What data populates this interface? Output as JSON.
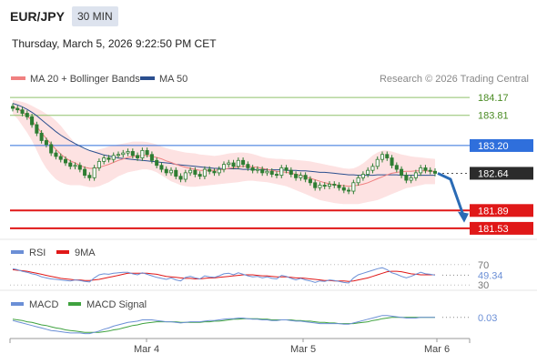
{
  "header": {
    "symbol": "EUR/JPY",
    "interval": "30 MIN",
    "datetime": "Thursday, March 5, 2026 9:22:50 PM CET"
  },
  "legend": {
    "ma20_bb": "MA 20 + Bollinger Bands",
    "ma50": "MA 50",
    "credit": "Research © 2026 Trading Central"
  },
  "colors": {
    "ma20": "#f08080",
    "ma50": "#2b4f8f",
    "band_fill": "#fde2e2",
    "resistance_green": "#8fc16b",
    "resistance_text": "#4a8b23",
    "pivot_blue": "#2f6fdc",
    "support_red": "#e01818",
    "arrow": "#2a6bb5",
    "candle": "#2e7d32",
    "rsi": "#6b8fd6",
    "rsi_ma": "#e01818",
    "macd": "#6b8fd6",
    "macd_signal": "#3fa23f"
  },
  "chart_data": [
    {
      "type": "candlestick",
      "ylim": [
        181.4,
        184.3
      ],
      "x_ticks": [
        "Mar 4",
        "Mar 5",
        "Mar 6"
      ],
      "levels": [
        {
          "value": 184.17,
          "label": "184.17",
          "kind": "resistance"
        },
        {
          "value": 183.81,
          "label": "183.81",
          "kind": "resistance"
        },
        {
          "value": 183.2,
          "label": "183.20",
          "kind": "pivot"
        },
        {
          "value": 182.64,
          "label": "182.64",
          "kind": "last"
        },
        {
          "value": 181.89,
          "label": "181.89",
          "kind": "support"
        },
        {
          "value": 181.53,
          "label": "181.53",
          "kind": "support"
        }
      ],
      "close": [
        183.95,
        183.92,
        183.85,
        183.78,
        183.62,
        183.45,
        183.3,
        183.22,
        183.05,
        182.98,
        182.92,
        182.85,
        182.78,
        182.8,
        182.72,
        182.6,
        182.55,
        182.75,
        182.88,
        182.95,
        182.92,
        183.0,
        183.02,
        183.05,
        183.08,
        183.0,
        182.95,
        183.1,
        183.02,
        182.9,
        182.8,
        182.72,
        182.65,
        182.7,
        182.58,
        182.52,
        182.65,
        182.7,
        182.62,
        182.58,
        182.72,
        182.68,
        182.65,
        182.72,
        182.82,
        182.85,
        182.78,
        182.9,
        182.82,
        182.75,
        182.7,
        182.72,
        182.65,
        182.68,
        182.62,
        182.6,
        182.75,
        182.7,
        182.62,
        182.55,
        182.6,
        182.52,
        182.45,
        182.35,
        182.4,
        182.38,
        182.42,
        182.4,
        182.35,
        182.3,
        182.28,
        182.45,
        182.55,
        182.62,
        182.7,
        182.78,
        182.92,
        183.02,
        182.95,
        182.8,
        182.72,
        182.6,
        182.5,
        182.55,
        182.65,
        182.75,
        182.7,
        182.68,
        182.64
      ],
      "ma50": [
        184.05,
        184.02,
        183.98,
        183.93,
        183.87,
        183.8,
        183.72,
        183.64,
        183.56,
        183.48,
        183.41,
        183.35,
        183.29,
        183.24,
        183.19,
        183.14,
        183.1,
        183.07,
        183.04,
        183.01,
        182.99,
        182.97,
        182.95,
        182.94,
        182.93,
        182.92,
        182.91,
        182.9,
        182.89,
        182.88,
        182.87,
        182.86,
        182.85,
        182.84,
        182.82,
        182.81,
        182.8,
        182.79,
        182.78,
        182.77,
        182.76,
        182.75,
        182.74,
        182.74,
        182.73,
        182.73,
        182.73,
        182.73,
        182.72,
        182.72,
        182.72,
        182.71,
        182.71,
        182.71,
        182.71,
        182.71,
        182.71,
        182.7,
        182.7,
        182.7,
        182.69,
        182.69,
        182.68,
        182.67,
        182.66,
        182.66,
        182.65,
        182.64,
        182.63,
        182.62,
        182.61,
        182.61,
        182.6,
        182.6,
        182.6,
        182.6,
        182.61,
        182.61,
        182.61,
        182.61,
        182.61,
        182.6,
        182.6,
        182.6,
        182.6,
        182.6,
        182.6,
        182.6,
        182.6
      ],
      "ma20": [
        183.98,
        183.94,
        183.88,
        183.8,
        183.7,
        183.58,
        183.46,
        183.34,
        183.23,
        183.12,
        183.03,
        182.95,
        182.89,
        182.85,
        182.8,
        182.76,
        182.74,
        182.74,
        182.76,
        182.79,
        182.82,
        182.86,
        182.9,
        182.93,
        182.96,
        182.98,
        182.99,
        183.0,
        183.0,
        182.98,
        182.96,
        182.93,
        182.89,
        182.86,
        182.82,
        182.79,
        182.76,
        182.74,
        182.72,
        182.7,
        182.7,
        182.7,
        182.7,
        182.71,
        182.72,
        182.74,
        182.75,
        182.77,
        182.78,
        182.78,
        182.77,
        182.76,
        182.74,
        182.72,
        182.7,
        182.68,
        182.67,
        182.66,
        182.64,
        182.62,
        182.6,
        182.57,
        182.54,
        182.51,
        182.48,
        182.45,
        182.43,
        182.41,
        182.4,
        182.39,
        182.38,
        182.39,
        182.4,
        182.42,
        182.45,
        182.49,
        182.53,
        182.57,
        182.61,
        182.64,
        182.66,
        182.67,
        182.68,
        182.68,
        182.69,
        182.69,
        182.69,
        182.68,
        182.68
      ],
      "bb_upper": [
        184.12,
        184.1,
        184.08,
        184.05,
        184.0,
        183.95,
        183.9,
        183.84,
        183.78,
        183.7,
        183.6,
        183.48,
        183.36,
        183.25,
        183.17,
        183.12,
        183.1,
        183.1,
        183.12,
        183.15,
        183.18,
        183.2,
        183.22,
        183.24,
        183.26,
        183.28,
        183.28,
        183.28,
        183.27,
        183.25,
        183.22,
        183.18,
        183.15,
        183.12,
        183.1,
        183.08,
        183.06,
        183.05,
        183.04,
        183.02,
        183.01,
        183.0,
        182.99,
        183.0,
        183.02,
        183.04,
        183.05,
        183.06,
        183.06,
        183.05,
        183.03,
        183.0,
        182.97,
        182.95,
        182.94,
        182.93,
        182.93,
        182.92,
        182.92,
        182.91,
        182.9,
        182.89,
        182.88,
        182.86,
        182.84,
        182.82,
        182.8,
        182.78,
        182.76,
        182.74,
        182.73,
        182.74,
        182.78,
        182.84,
        182.92,
        183.0,
        183.06,
        183.1,
        183.1,
        183.08,
        183.05,
        183.02,
        183.0,
        182.98,
        182.97,
        182.96,
        182.95,
        182.94,
        182.93
      ],
      "bb_lower": [
        183.84,
        183.74,
        183.6,
        183.46,
        183.3,
        183.1,
        182.9,
        182.74,
        182.62,
        182.52,
        182.46,
        182.42,
        182.4,
        182.4,
        182.4,
        182.38,
        182.36,
        182.36,
        182.38,
        182.42,
        182.46,
        182.52,
        182.58,
        182.62,
        182.66,
        182.68,
        182.7,
        182.72,
        182.72,
        182.7,
        182.66,
        182.6,
        182.54,
        182.48,
        182.44,
        182.4,
        182.38,
        182.37,
        182.37,
        182.38,
        182.39,
        182.4,
        182.41,
        182.42,
        182.43,
        182.44,
        182.45,
        182.46,
        182.48,
        182.49,
        182.49,
        182.48,
        182.47,
        182.46,
        182.44,
        182.42,
        182.4,
        182.38,
        182.34,
        182.3,
        182.26,
        182.22,
        182.18,
        182.14,
        182.1,
        182.08,
        182.06,
        182.04,
        182.03,
        182.02,
        182.02,
        182.02,
        182.02,
        182.04,
        182.06,
        182.08,
        182.1,
        182.14,
        182.18,
        182.22,
        182.26,
        182.3,
        182.34,
        182.36,
        182.38,
        182.4,
        182.42,
        182.42,
        182.42
      ],
      "forecast": [
        182.64,
        182.52,
        181.72
      ]
    },
    {
      "type": "line",
      "legend": [
        "RSI",
        "9MA"
      ],
      "ylim": [
        25,
        75
      ],
      "ticks": [
        "70",
        "30"
      ],
      "last_label": "49.34",
      "rsi": [
        62,
        60,
        57,
        55,
        52,
        50,
        46,
        44,
        42,
        41,
        40,
        39,
        38,
        40,
        39,
        37,
        36,
        44,
        50,
        52,
        51,
        53,
        54,
        55,
        55,
        52,
        50,
        54,
        51,
        48,
        45,
        43,
        41,
        44,
        40,
        38,
        45,
        47,
        44,
        42,
        48,
        46,
        45,
        48,
        52,
        53,
        50,
        54,
        51,
        48,
        46,
        47,
        44,
        46,
        43,
        42,
        49,
        47,
        43,
        40,
        43,
        40,
        38,
        35,
        38,
        37,
        40,
        39,
        37,
        35,
        34,
        44,
        50,
        53,
        56,
        59,
        62,
        64,
        60,
        54,
        51,
        47,
        44,
        47,
        51,
        55,
        52,
        51,
        49.34
      ],
      "rsi_ma": [
        60,
        59,
        58,
        57,
        55,
        53,
        51,
        49,
        47,
        45,
        43,
        42,
        41,
        40,
        40,
        39,
        39,
        40,
        41,
        43,
        45,
        47,
        49,
        51,
        53,
        53,
        53,
        53,
        53,
        52,
        51,
        49,
        47,
        46,
        45,
        44,
        43,
        43,
        42,
        42,
        43,
        44,
        44,
        45,
        46,
        47,
        48,
        49,
        50,
        50,
        50,
        49,
        48,
        48,
        47,
        46,
        46,
        46,
        45,
        44,
        44,
        43,
        42,
        41,
        40,
        39,
        39,
        38,
        38,
        38,
        37,
        38,
        40,
        42,
        44,
        47,
        50,
        53,
        56,
        57,
        57,
        56,
        54,
        52,
        51,
        50,
        50,
        50,
        50
      ]
    },
    {
      "type": "line",
      "legend": [
        "MACD",
        "MACD Signal"
      ],
      "ylim": [
        -0.28,
        0.1
      ],
      "last_label": "0.03",
      "macd": [
        -0.02,
        -0.04,
        -0.06,
        -0.08,
        -0.1,
        -0.12,
        -0.14,
        -0.16,
        -0.18,
        -0.19,
        -0.2,
        -0.21,
        -0.22,
        -0.22,
        -0.22,
        -0.23,
        -0.23,
        -0.21,
        -0.19,
        -0.16,
        -0.14,
        -0.11,
        -0.09,
        -0.07,
        -0.05,
        -0.04,
        -0.03,
        -0.01,
        -0.01,
        -0.01,
        -0.02,
        -0.03,
        -0.04,
        -0.04,
        -0.05,
        -0.06,
        -0.05,
        -0.04,
        -0.04,
        -0.04,
        -0.03,
        -0.02,
        -0.02,
        -0.01,
        0.0,
        0.01,
        0.01,
        0.02,
        0.02,
        0.01,
        0.0,
        0.0,
        -0.01,
        -0.01,
        -0.02,
        -0.02,
        -0.01,
        -0.01,
        -0.02,
        -0.03,
        -0.03,
        -0.04,
        -0.05,
        -0.06,
        -0.07,
        -0.07,
        -0.07,
        -0.07,
        -0.07,
        -0.08,
        -0.08,
        -0.06,
        -0.04,
        -0.02,
        0.0,
        0.02,
        0.04,
        0.06,
        0.06,
        0.05,
        0.04,
        0.03,
        0.02,
        0.02,
        0.02,
        0.03,
        0.03,
        0.03,
        0.03
      ],
      "macd_signal": [
        0.0,
        -0.01,
        -0.02,
        -0.04,
        -0.05,
        -0.07,
        -0.09,
        -0.1,
        -0.12,
        -0.14,
        -0.15,
        -0.17,
        -0.18,
        -0.19,
        -0.2,
        -0.21,
        -0.21,
        -0.21,
        -0.21,
        -0.2,
        -0.19,
        -0.17,
        -0.16,
        -0.14,
        -0.12,
        -0.1,
        -0.09,
        -0.07,
        -0.06,
        -0.05,
        -0.04,
        -0.04,
        -0.04,
        -0.04,
        -0.04,
        -0.05,
        -0.05,
        -0.05,
        -0.05,
        -0.05,
        -0.04,
        -0.04,
        -0.03,
        -0.03,
        -0.02,
        -0.01,
        0.0,
        0.0,
        0.01,
        0.01,
        0.01,
        0.01,
        0.0,
        0.0,
        -0.01,
        -0.01,
        -0.01,
        -0.01,
        -0.01,
        -0.02,
        -0.02,
        -0.03,
        -0.03,
        -0.04,
        -0.05,
        -0.05,
        -0.06,
        -0.06,
        -0.07,
        -0.07,
        -0.07,
        -0.07,
        -0.06,
        -0.05,
        -0.04,
        -0.02,
        -0.01,
        0.01,
        0.02,
        0.03,
        0.03,
        0.03,
        0.03,
        0.03,
        0.03,
        0.03,
        0.03,
        0.03,
        0.03
      ]
    }
  ]
}
